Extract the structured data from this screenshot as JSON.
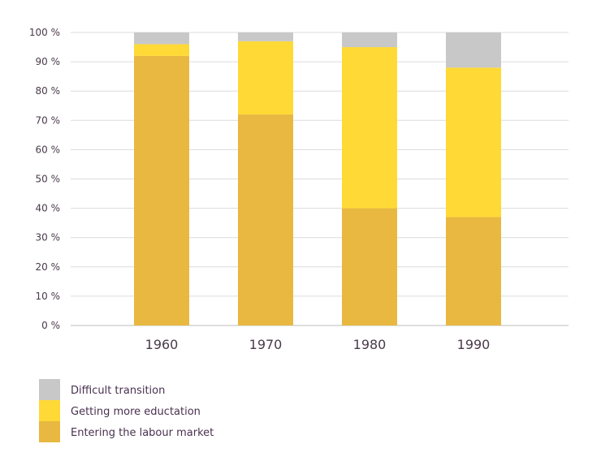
{
  "chart_data": {
    "type": "bar",
    "stacked": true,
    "title": "",
    "xlabel": "",
    "ylabel": "",
    "ylim": [
      0,
      100
    ],
    "y_ticks": [
      "0 %",
      "10 %",
      "20 %",
      "30 %",
      "40 %",
      "50 %",
      "60 %",
      "70 %",
      "80 %",
      "90 %",
      "100 %"
    ],
    "y_tick_values": [
      0,
      10,
      20,
      30,
      40,
      50,
      60,
      70,
      80,
      90,
      100
    ],
    "grid": true,
    "legend_position": "bottom-left",
    "categories": [
      "1960",
      "1970",
      "1980",
      "1990"
    ],
    "series": [
      {
        "name": "Entering the labour market",
        "color": "#E8B840",
        "values": [
          92,
          72,
          40,
          37
        ]
      },
      {
        "name": "Getting more eductation",
        "color": "#FFD935",
        "values": [
          4,
          25,
          55,
          51
        ]
      },
      {
        "name": "Difficult transition",
        "color": "#C8C8C8",
        "values": [
          4,
          3,
          5,
          12
        ]
      }
    ],
    "legend_order": [
      2,
      1,
      0
    ]
  }
}
